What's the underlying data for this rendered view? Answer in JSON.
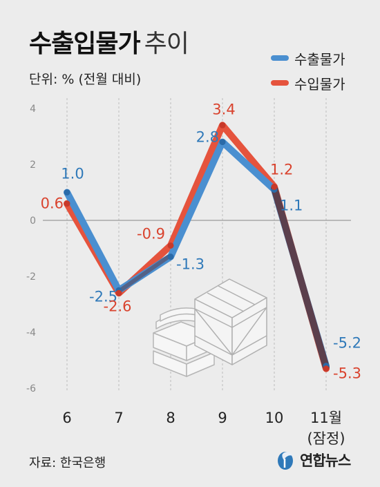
{
  "title": {
    "main": "수출입물가",
    "sub": "추이"
  },
  "unit_label": "단위: % (전월 대비)",
  "source": "자료: 한국은행",
  "brand": "연합뉴스",
  "colors": {
    "export": "#4a8fd0",
    "import": "#e5533d",
    "export_label": "#2f79b9",
    "import_label": "#d9432e",
    "overlap": "#5b3f4c"
  },
  "chart_data": {
    "type": "line",
    "categories": [
      "6",
      "7",
      "8",
      "9",
      "10",
      "11월|(잠정)"
    ],
    "series": [
      {
        "name": "수출물가",
        "values": [
          1.0,
          -2.5,
          -1.3,
          2.8,
          1.1,
          -5.2
        ],
        "labels": [
          "1.0",
          "-2.5",
          "-1.3",
          "2.8",
          "1.1",
          "-5.2"
        ]
      },
      {
        "name": "수입물가",
        "values": [
          0.6,
          -2.6,
          -0.9,
          3.4,
          1.2,
          -5.3
        ],
        "labels": [
          "0.6",
          "-2.6",
          "-0.9",
          "3.4",
          "1.2",
          "-5.3"
        ]
      }
    ],
    "yticks": [
      4,
      2,
      0,
      -2,
      -4,
      -6
    ],
    "ylim": [
      -6,
      4
    ],
    "grid": "vertical dashed",
    "legend": "top-right"
  }
}
